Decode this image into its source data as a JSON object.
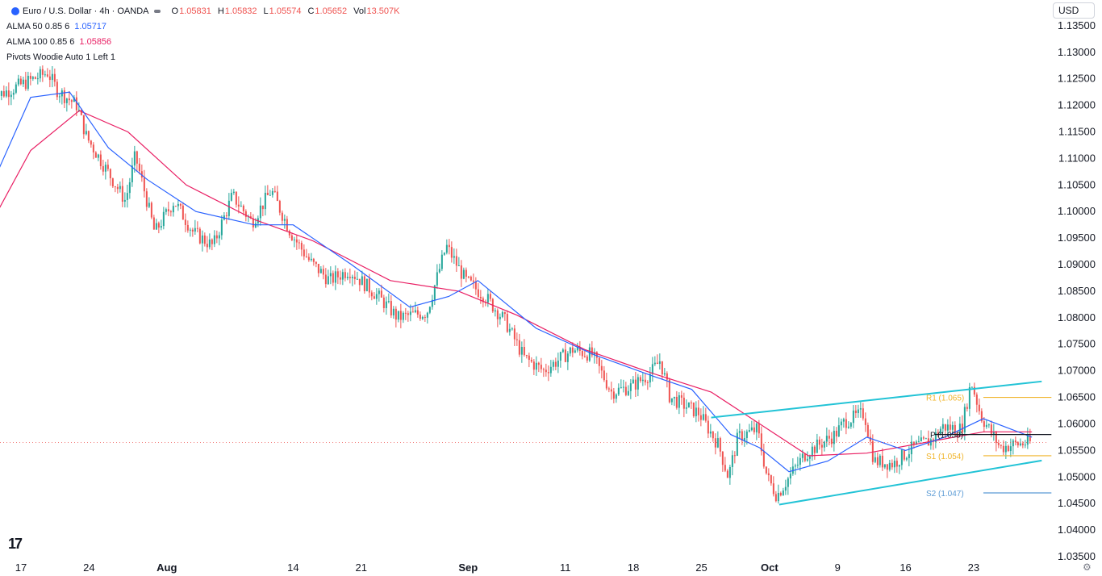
{
  "header": {
    "symbol": "Euro / U.S. Dollar · 4h · OANDA",
    "open_label": "O",
    "open": "1.05831",
    "high_label": "H",
    "high": "1.05832",
    "low_label": "L",
    "low": "1.05574",
    "close_label": "C",
    "close": "1.05652",
    "vol_label": "Vol",
    "vol": "13.507K"
  },
  "indicators": [
    {
      "name": "ALMA 50 0.85 6",
      "value": "1.05717",
      "color": "#2962ff"
    },
    {
      "name": "ALMA 100 0.85 6",
      "value": "1.05856",
      "color": "#e91e63"
    },
    {
      "name": "Pivots Woodie Auto 1 Left 1",
      "value": "",
      "color": "#131722"
    }
  ],
  "currency": "USD",
  "colors": {
    "up": "#26a69a",
    "down": "#ef5350",
    "channel": "#22c3d6",
    "alma50": "#2962ff",
    "alma100": "#e91e63",
    "pivot_r": "#f0b429",
    "pivot_s2": "#5b9bd5",
    "pivot_p": "#131722"
  },
  "chart_data": {
    "type": "candlestick",
    "y_ticks": [
      "1.13500",
      "1.13000",
      "1.12500",
      "1.12000",
      "1.11500",
      "1.11000",
      "1.10500",
      "1.10000",
      "1.09500",
      "1.09000",
      "1.08500",
      "1.08000",
      "1.07500",
      "1.07000",
      "1.06500",
      "1.06000",
      "1.05500",
      "1.05000",
      "1.04500",
      "1.04000",
      "1.03500"
    ],
    "ylim": [
      1.035,
      1.1365
    ],
    "x_ticks": [
      "17",
      "24",
      "Aug",
      "14",
      "21",
      "Sep",
      "11",
      "18",
      "25",
      "Oct",
      "9",
      "16",
      "23"
    ],
    "current_price": 1.05652,
    "pivot_labels": {
      "R1": "R1 (1.065)",
      "P": "P (1.058)",
      "S1": "S1 (1.054)",
      "S2": "S2 (1.047)"
    },
    "pivots": {
      "R1": 1.065,
      "P": 1.058,
      "S1": 1.054,
      "S2": 1.047
    },
    "channel": {
      "upper": [
        [
          "Sep 26",
          1.0612
        ],
        [
          "Oct 30",
          1.068
        ]
      ],
      "lower": [
        [
          "Oct 3",
          1.0448
        ],
        [
          "Oct 30",
          1.0531
        ]
      ]
    },
    "price_path": [
      [
        "Jul 14",
        1.1212
      ],
      [
        "Jul 18",
        1.1245
      ],
      [
        "Jul 20",
        1.1262
      ],
      [
        "Jul 21",
        1.1228
      ],
      [
        "Jul 23",
        1.12
      ],
      [
        "Jul 24",
        1.114
      ],
      [
        "Jul 26",
        1.108
      ],
      [
        "Jul 28",
        1.102
      ],
      [
        "Jul 29",
        1.1105
      ],
      [
        "Jul 30",
        1.1035
      ],
      [
        "Jul 31",
        1.096
      ],
      [
        "Aug 2",
        1.102
      ],
      [
        "Aug 4",
        1.096
      ],
      [
        "Aug 6",
        1.0935
      ],
      [
        "Aug 8",
        1.103
      ],
      [
        "Aug 10",
        1.098
      ],
      [
        "Aug 12",
        1.104
      ],
      [
        "Aug 14",
        1.096
      ],
      [
        "Aug 16",
        1.0905
      ],
      [
        "Aug 18",
        1.087
      ],
      [
        "Aug 20",
        1.089
      ],
      [
        "Aug 23",
        1.084
      ],
      [
        "Aug 25",
        1.08
      ],
      [
        "Aug 28",
        1.081
      ],
      [
        "Aug 30",
        1.0935
      ],
      [
        "Sep 1",
        1.087
      ],
      [
        "Sep 3",
        1.084
      ],
      [
        "Sep 5",
        1.0795
      ],
      [
        "Sep 7",
        1.0725
      ],
      [
        "Sep 9",
        1.07
      ],
      [
        "Sep 12",
        1.074
      ],
      [
        "Sep 14",
        1.073
      ],
      [
        "Sep 16",
        1.066
      ],
      [
        "Sep 18",
        1.067
      ],
      [
        "Sep 20",
        1.0695
      ],
      [
        "Sep 21",
        1.072
      ],
      [
        "Sep 22",
        1.065
      ],
      [
        "Sep 25",
        1.062
      ],
      [
        "Sep 27",
        1.056
      ],
      [
        "Sep 28",
        1.05
      ],
      [
        "Sep 29",
        1.0575
      ],
      [
        "Oct 1",
        1.059
      ],
      [
        "Oct 2",
        1.05
      ],
      [
        "Oct 3",
        1.0465
      ],
      [
        "Oct 5",
        1.052
      ],
      [
        "Oct 6",
        1.0545
      ],
      [
        "Oct 9",
        1.058
      ],
      [
        "Oct 10",
        1.0605
      ],
      [
        "Oct 12",
        1.062
      ],
      [
        "Oct 13",
        1.053
      ],
      [
        "Oct 15",
        1.0525
      ],
      [
        "Oct 17",
        1.0555
      ],
      [
        "Oct 19",
        1.057
      ],
      [
        "Oct 20",
        1.0595
      ],
      [
        "Oct 22",
        1.059
      ],
      [
        "Oct 23",
        1.068
      ],
      [
        "Oct 24",
        1.0615
      ],
      [
        "Oct 25",
        1.0585
      ],
      [
        "Oct 26",
        1.0555
      ],
      [
        "Oct 27",
        1.056
      ],
      [
        "Oct 29",
        1.0565
      ]
    ],
    "alma50_path": [
      [
        "Jul 14",
        1.105
      ],
      [
        "Jul 18",
        1.1215
      ],
      [
        "Jul 22",
        1.1225
      ],
      [
        "Jul 26",
        1.112
      ],
      [
        "Jul 30",
        1.106
      ],
      [
        "Aug 4",
        1.1
      ],
      [
        "Aug 10",
        1.0975
      ],
      [
        "Aug 14",
        1.0975
      ],
      [
        "Aug 20",
        1.09
      ],
      [
        "Aug 26",
        1.082
      ],
      [
        "Aug 30",
        1.084
      ],
      [
        "Sep 2",
        1.087
      ],
      [
        "Sep 8",
        1.078
      ],
      [
        "Sep 14",
        1.073
      ],
      [
        "Sep 20",
        1.069
      ],
      [
        "Sep 24",
        1.0665
      ],
      [
        "Sep 28",
        1.058
      ],
      [
        "Oct 1",
        1.0555
      ],
      [
        "Oct 4",
        1.051
      ],
      [
        "Oct 8",
        1.053
      ],
      [
        "Oct 12",
        1.0575
      ],
      [
        "Oct 16",
        1.055
      ],
      [
        "Oct 20",
        1.0575
      ],
      [
        "Oct 24",
        1.061
      ],
      [
        "Oct 29",
        1.0575
      ]
    ],
    "alma100_path": [
      [
        "Jul 14",
        1.098
      ],
      [
        "Jul 18",
        1.1115
      ],
      [
        "Jul 23",
        1.119
      ],
      [
        "Jul 28",
        1.115
      ],
      [
        "Aug 3",
        1.105
      ],
      [
        "Aug 10",
        1.0985
      ],
      [
        "Aug 16",
        1.0945
      ],
      [
        "Aug 24",
        1.087
      ],
      [
        "Aug 31",
        1.085
      ],
      [
        "Sep 6",
        1.0805
      ],
      [
        "Sep 13",
        1.074
      ],
      [
        "Sep 20",
        1.0695
      ],
      [
        "Sep 26",
        1.066
      ],
      [
        "Oct 1",
        1.06
      ],
      [
        "Oct 6",
        1.054
      ],
      [
        "Oct 12",
        1.0545
      ],
      [
        "Oct 18",
        1.0565
      ],
      [
        "Oct 24",
        1.0585
      ],
      [
        "Oct 29",
        1.0585
      ]
    ]
  }
}
